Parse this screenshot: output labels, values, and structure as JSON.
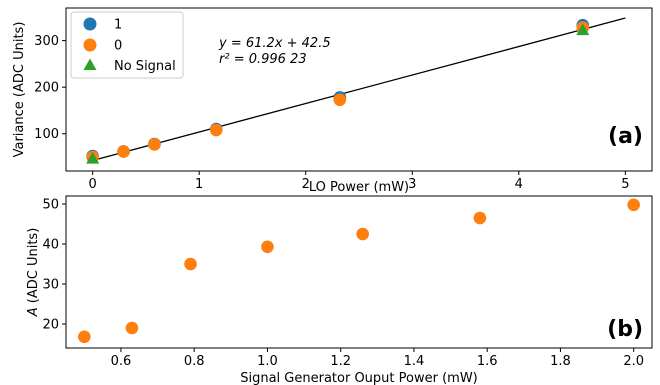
{
  "colors": {
    "blue": "#1f77b4",
    "orange": "#ff7f0e",
    "green": "#2ca02c",
    "fit_line": "#000000"
  },
  "chart_data": [
    {
      "type": "scatter",
      "panel_label": "(a)",
      "xlabel": "LO Power (mW)",
      "ylabel": "Variance (ADC Units)",
      "xlim": [
        -0.25,
        5.25
      ],
      "ylim": [
        20,
        370
      ],
      "xticks": [
        0,
        1,
        2,
        3,
        4,
        5
      ],
      "yticks": [
        100,
        200,
        300
      ],
      "grid": false,
      "legend_position": "top-left",
      "series": [
        {
          "name": "1",
          "marker": "circle",
          "color": "#1f77b4",
          "x": [
            0,
            0.29,
            0.58,
            1.16,
            2.32,
            4.6
          ],
          "y": [
            52,
            62,
            78,
            110,
            178,
            333
          ]
        },
        {
          "name": "0",
          "marker": "circle",
          "color": "#ff7f0e",
          "x": [
            0,
            0.29,
            0.58,
            1.16,
            2.32,
            4.6
          ],
          "y": [
            50,
            62,
            77,
            108,
            173,
            328
          ]
        },
        {
          "name": "No Signal",
          "marker": "triangle",
          "color": "#2ca02c",
          "x": [
            0,
            4.6
          ],
          "y": [
            47,
            323
          ]
        }
      ],
      "fit": {
        "slope": 61.2,
        "intercept": 42.5,
        "x_range": [
          0,
          5
        ],
        "equation": "y = 61.2x + 42.5",
        "r2": "r² = 0.996 23"
      }
    },
    {
      "type": "scatter",
      "panel_label": "(b)",
      "xlabel": "Signal Generator Ouput Power (mW)",
      "ylabel": "A (ADC Units)",
      "xlim": [
        0.45,
        2.05
      ],
      "ylim": [
        14,
        52
      ],
      "xticks": [
        0.6,
        0.8,
        1.0,
        1.2,
        1.4,
        1.6,
        1.8,
        2.0
      ],
      "xtick_labels": [
        "0.6",
        "0.8",
        "1.0",
        "1.2",
        "1.4",
        "1.6",
        "1.8",
        "2.0"
      ],
      "yticks": [
        20,
        30,
        40,
        50
      ],
      "grid": false,
      "series": [
        {
          "marker": "circle",
          "color": "#ff7f0e",
          "x": [
            0.5,
            0.63,
            0.79,
            1.0,
            1.26,
            1.58,
            2.0
          ],
          "y": [
            16.8,
            19.0,
            35.0,
            39.3,
            42.5,
            46.5,
            49.8
          ]
        }
      ]
    }
  ]
}
